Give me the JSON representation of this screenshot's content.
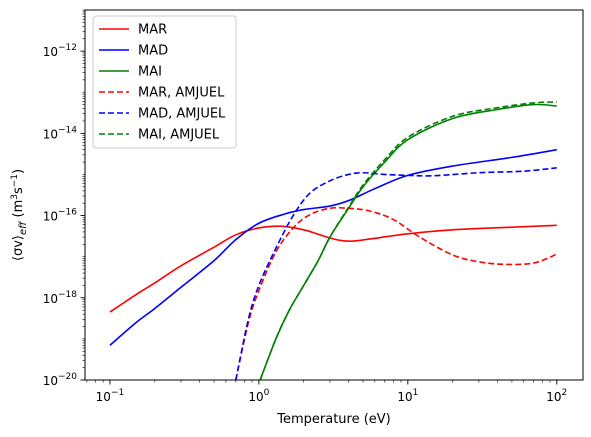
{
  "chart_data": {
    "type": "line",
    "xlabel": "Temperature (eV)",
    "ylabel": "⟨σv⟩eff (m³s⁻¹)",
    "ylabel_parts": {
      "main": "⟨σv⟩",
      "sub": "eff",
      "unit": " (m",
      "exp1": "3",
      "mid": "s",
      "exp2": "−1",
      "close": ")"
    },
    "xscale": "log",
    "yscale": "log",
    "xlim": [
      0.068,
      150
    ],
    "ylim": [
      1e-20,
      1e-11
    ],
    "x_ticks": [
      {
        "value": 0.1,
        "base": "10",
        "exp": "−1"
      },
      {
        "value": 1,
        "base": "10",
        "exp": "0"
      },
      {
        "value": 10,
        "base": "10",
        "exp": "1"
      },
      {
        "value": 100,
        "base": "10",
        "exp": "2"
      }
    ],
    "y_ticks": [
      {
        "value": 1e-20,
        "base": "10",
        "exp": "−20"
      },
      {
        "value": 1e-18,
        "base": "10",
        "exp": "−18"
      },
      {
        "value": 1e-16,
        "base": "10",
        "exp": "−16"
      },
      {
        "value": 1e-14,
        "base": "10",
        "exp": "−14"
      },
      {
        "value": 1e-12,
        "base": "10",
        "exp": "−12"
      }
    ],
    "legend_position": "top-left",
    "grid": false,
    "series": [
      {
        "name": "MAR",
        "color": "#ff0000",
        "dash": "solid",
        "points": [
          [
            0.1,
            4.5e-19
          ],
          [
            0.15,
            1.2e-18
          ],
          [
            0.2,
            2.3e-18
          ],
          [
            0.3,
            6e-18
          ],
          [
            0.5,
            1.7e-17
          ],
          [
            0.7,
            3.4e-17
          ],
          [
            1.0,
            5e-17
          ],
          [
            1.4,
            5.5e-17
          ],
          [
            2.0,
            4.5e-17
          ],
          [
            2.7,
            3.2e-17
          ],
          [
            3.5,
            2.5e-17
          ],
          [
            4.3,
            2.4e-17
          ],
          [
            6,
            2.8e-17
          ],
          [
            10,
            3.6e-17
          ],
          [
            20,
            4.5e-17
          ],
          [
            50,
            5.2e-17
          ],
          [
            100,
            5.8e-17
          ]
        ]
      },
      {
        "name": "MAD",
        "color": "#0000ff",
        "dash": "solid",
        "points": [
          [
            0.1,
            7e-20
          ],
          [
            0.15,
            2.5e-19
          ],
          [
            0.2,
            5.5e-19
          ],
          [
            0.3,
            1.8e-18
          ],
          [
            0.5,
            8e-18
          ],
          [
            0.7,
            2.6e-17
          ],
          [
            1.0,
            6.5e-17
          ],
          [
            1.5,
            1.1e-16
          ],
          [
            2.0,
            1.4e-16
          ],
          [
            3.0,
            1.7e-16
          ],
          [
            4.0,
            2.3e-16
          ],
          [
            6,
            4.5e-16
          ],
          [
            10,
            9.5e-16
          ],
          [
            20,
            1.6e-15
          ],
          [
            50,
            2.6e-15
          ],
          [
            100,
            4e-15
          ]
        ]
      },
      {
        "name": "MAI",
        "color": "#008000",
        "dash": "solid",
        "points": [
          [
            1.02,
            1e-20
          ],
          [
            1.3,
            1e-19
          ],
          [
            1.6,
            5e-19
          ],
          [
            2.0,
            2e-18
          ],
          [
            2.5,
            8e-18
          ],
          [
            3.0,
            3e-17
          ],
          [
            4.0,
            1.5e-16
          ],
          [
            5,
            5e-16
          ],
          [
            7,
            2e-15
          ],
          [
            10,
            7e-15
          ],
          [
            20,
            2.3e-14
          ],
          [
            40,
            3.8e-14
          ],
          [
            70,
            5e-14
          ],
          [
            100,
            4.6e-14
          ]
        ]
      },
      {
        "name": "MAR, AMJUEL",
        "color": "#ff0000",
        "dash": "dashed",
        "points": [
          [
            0.7,
            1e-20
          ],
          [
            0.85,
            2.5e-19
          ],
          [
            1.0,
            1.5e-18
          ],
          [
            1.3,
            1.3e-17
          ],
          [
            1.7,
            5e-17
          ],
          [
            2.2,
            1.05e-16
          ],
          [
            3.0,
            1.5e-16
          ],
          [
            4.0,
            1.5e-16
          ],
          [
            5.5,
            1.3e-16
          ],
          [
            8,
            8e-17
          ],
          [
            12,
            3e-17
          ],
          [
            20,
            1.1e-17
          ],
          [
            30,
            7.5e-18
          ],
          [
            45,
            6.5e-18
          ],
          [
            70,
            7e-18
          ],
          [
            100,
            1.15e-17
          ]
        ]
      },
      {
        "name": "MAD, AMJUEL",
        "color": "#0000ff",
        "dash": "dashed",
        "points": [
          [
            0.7,
            1e-20
          ],
          [
            0.85,
            3e-19
          ],
          [
            1.0,
            2e-18
          ],
          [
            1.3,
            1.6e-17
          ],
          [
            1.7,
            1e-16
          ],
          [
            2.2,
            3.5e-16
          ],
          [
            3.0,
            7e-16
          ],
          [
            4.0,
            1e-15
          ],
          [
            5,
            1.1e-15
          ],
          [
            7,
            1e-15
          ],
          [
            10,
            9.5e-16
          ],
          [
            15,
            9.3e-16
          ],
          [
            30,
            1.1e-15
          ],
          [
            60,
            1.2e-15
          ],
          [
            100,
            1.45e-15
          ]
        ]
      },
      {
        "name": "MAI, AMJUEL",
        "color": "#008000",
        "dash": "dashed",
        "points": [
          [
            1.02,
            1e-20
          ],
          [
            1.3,
            1e-19
          ],
          [
            1.6,
            5e-19
          ],
          [
            2.0,
            2e-18
          ],
          [
            2.5,
            8e-18
          ],
          [
            3.0,
            3e-17
          ],
          [
            4.0,
            1.6e-16
          ],
          [
            5,
            5.5e-16
          ],
          [
            7,
            2.3e-15
          ],
          [
            10,
            8e-15
          ],
          [
            20,
            2.6e-14
          ],
          [
            40,
            4.2e-14
          ],
          [
            70,
            5.5e-14
          ],
          [
            100,
            5.8e-14
          ]
        ]
      }
    ]
  }
}
